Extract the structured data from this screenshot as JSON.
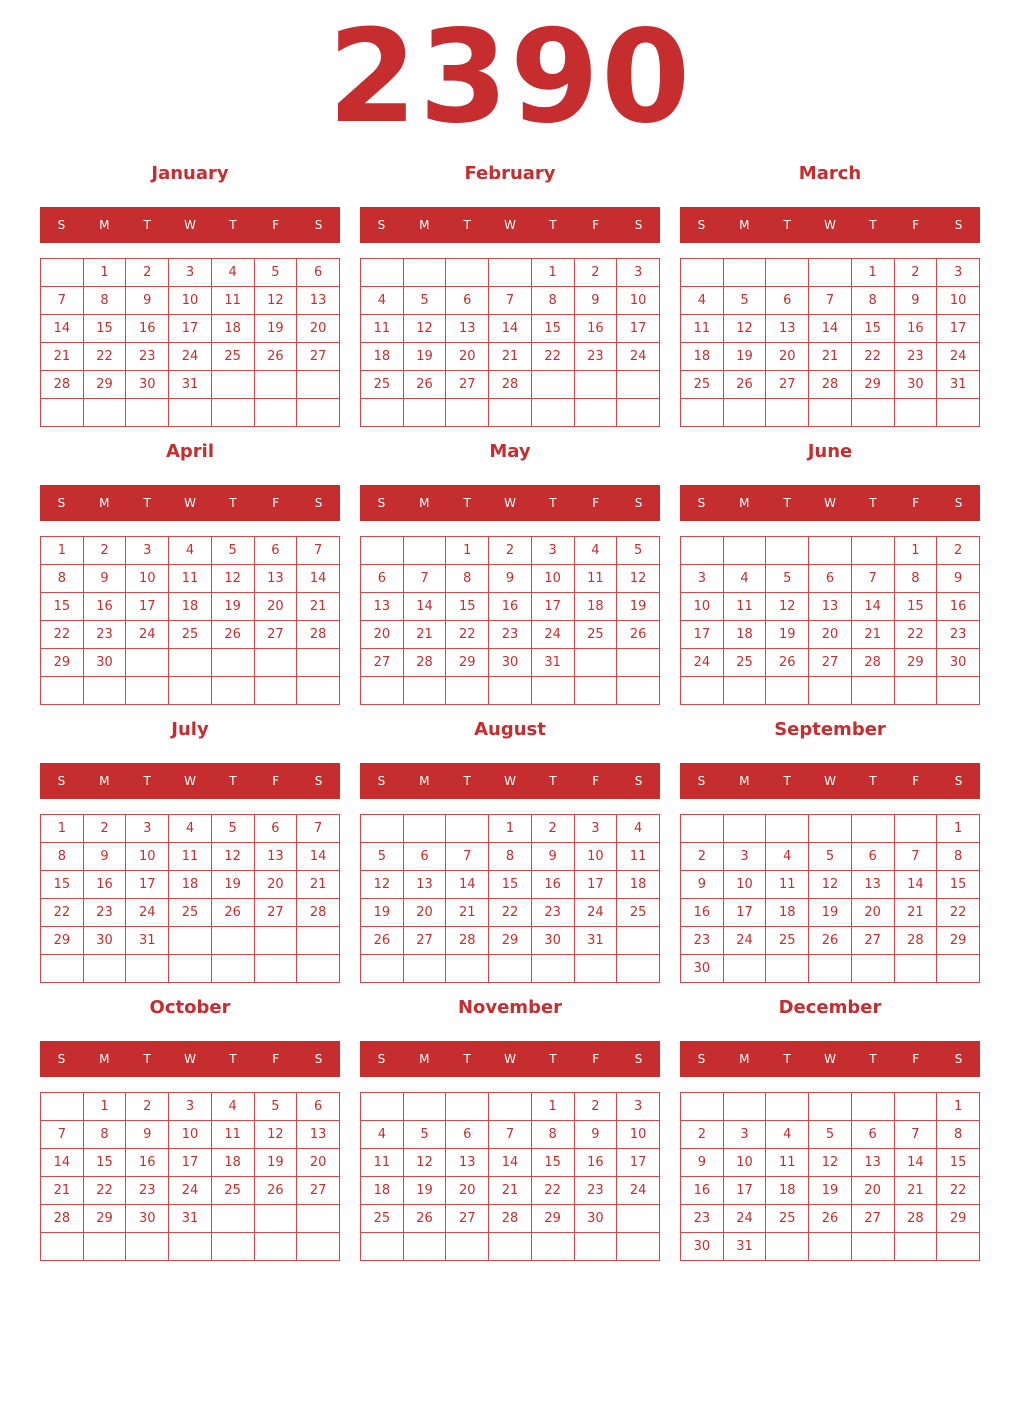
{
  "year": "2390",
  "colors": {
    "accent": "#c62d2f"
  },
  "weekdays": [
    "S",
    "M",
    "T",
    "W",
    "T",
    "F",
    "S"
  ],
  "months": [
    {
      "name": "January",
      "weeks": [
        [
          null,
          1,
          2,
          3,
          4,
          5,
          6
        ],
        [
          7,
          8,
          9,
          10,
          11,
          12,
          13
        ],
        [
          14,
          15,
          16,
          17,
          18,
          19,
          20
        ],
        [
          21,
          22,
          23,
          24,
          25,
          26,
          27
        ],
        [
          28,
          29,
          30,
          31,
          null,
          null,
          null
        ],
        [
          null,
          null,
          null,
          null,
          null,
          null,
          null
        ]
      ]
    },
    {
      "name": "February",
      "weeks": [
        [
          null,
          null,
          null,
          null,
          1,
          2,
          3
        ],
        [
          4,
          5,
          6,
          7,
          8,
          9,
          10
        ],
        [
          11,
          12,
          13,
          14,
          15,
          16,
          17
        ],
        [
          18,
          19,
          20,
          21,
          22,
          23,
          24
        ],
        [
          25,
          26,
          27,
          28,
          null,
          null,
          null
        ],
        [
          null,
          null,
          null,
          null,
          null,
          null,
          null
        ]
      ]
    },
    {
      "name": "March",
      "weeks": [
        [
          null,
          null,
          null,
          null,
          1,
          2,
          3
        ],
        [
          4,
          5,
          6,
          7,
          8,
          9,
          10
        ],
        [
          11,
          12,
          13,
          14,
          15,
          16,
          17
        ],
        [
          18,
          19,
          20,
          21,
          22,
          23,
          24
        ],
        [
          25,
          26,
          27,
          28,
          29,
          30,
          31
        ],
        [
          null,
          null,
          null,
          null,
          null,
          null,
          null
        ]
      ]
    },
    {
      "name": "April",
      "weeks": [
        [
          1,
          2,
          3,
          4,
          5,
          6,
          7
        ],
        [
          8,
          9,
          10,
          11,
          12,
          13,
          14
        ],
        [
          15,
          16,
          17,
          18,
          19,
          20,
          21
        ],
        [
          22,
          23,
          24,
          25,
          26,
          27,
          28
        ],
        [
          29,
          30,
          null,
          null,
          null,
          null,
          null
        ],
        [
          null,
          null,
          null,
          null,
          null,
          null,
          null
        ]
      ]
    },
    {
      "name": "May",
      "weeks": [
        [
          null,
          null,
          1,
          2,
          3,
          4,
          5
        ],
        [
          6,
          7,
          8,
          9,
          10,
          11,
          12
        ],
        [
          13,
          14,
          15,
          16,
          17,
          18,
          19
        ],
        [
          20,
          21,
          22,
          23,
          24,
          25,
          26
        ],
        [
          27,
          28,
          29,
          30,
          31,
          null,
          null
        ],
        [
          null,
          null,
          null,
          null,
          null,
          null,
          null
        ]
      ]
    },
    {
      "name": "June",
      "weeks": [
        [
          null,
          null,
          null,
          null,
          null,
          1,
          2
        ],
        [
          3,
          4,
          5,
          6,
          7,
          8,
          9
        ],
        [
          10,
          11,
          12,
          13,
          14,
          15,
          16
        ],
        [
          17,
          18,
          19,
          20,
          21,
          22,
          23
        ],
        [
          24,
          25,
          26,
          27,
          28,
          29,
          30
        ],
        [
          null,
          null,
          null,
          null,
          null,
          null,
          null
        ]
      ]
    },
    {
      "name": "July",
      "weeks": [
        [
          1,
          2,
          3,
          4,
          5,
          6,
          7
        ],
        [
          8,
          9,
          10,
          11,
          12,
          13,
          14
        ],
        [
          15,
          16,
          17,
          18,
          19,
          20,
          21
        ],
        [
          22,
          23,
          24,
          25,
          26,
          27,
          28
        ],
        [
          29,
          30,
          31,
          null,
          null,
          null,
          null
        ],
        [
          null,
          null,
          null,
          null,
          null,
          null,
          null
        ]
      ]
    },
    {
      "name": "August",
      "weeks": [
        [
          null,
          null,
          null,
          1,
          2,
          3,
          4
        ],
        [
          5,
          6,
          7,
          8,
          9,
          10,
          11
        ],
        [
          12,
          13,
          14,
          15,
          16,
          17,
          18
        ],
        [
          19,
          20,
          21,
          22,
          23,
          24,
          25
        ],
        [
          26,
          27,
          28,
          29,
          30,
          31,
          null
        ],
        [
          null,
          null,
          null,
          null,
          null,
          null,
          null
        ]
      ]
    },
    {
      "name": "September",
      "weeks": [
        [
          null,
          null,
          null,
          null,
          null,
          null,
          1
        ],
        [
          2,
          3,
          4,
          5,
          6,
          7,
          8
        ],
        [
          9,
          10,
          11,
          12,
          13,
          14,
          15
        ],
        [
          16,
          17,
          18,
          19,
          20,
          21,
          22
        ],
        [
          23,
          24,
          25,
          26,
          27,
          28,
          29
        ],
        [
          30,
          null,
          null,
          null,
          null,
          null,
          null
        ]
      ]
    },
    {
      "name": "October",
      "weeks": [
        [
          null,
          1,
          2,
          3,
          4,
          5,
          6
        ],
        [
          7,
          8,
          9,
          10,
          11,
          12,
          13
        ],
        [
          14,
          15,
          16,
          17,
          18,
          19,
          20
        ],
        [
          21,
          22,
          23,
          24,
          25,
          26,
          27
        ],
        [
          28,
          29,
          30,
          31,
          null,
          null,
          null
        ],
        [
          null,
          null,
          null,
          null,
          null,
          null,
          null
        ]
      ]
    },
    {
      "name": "November",
      "weeks": [
        [
          null,
          null,
          null,
          null,
          1,
          2,
          3
        ],
        [
          4,
          5,
          6,
          7,
          8,
          9,
          10
        ],
        [
          11,
          12,
          13,
          14,
          15,
          16,
          17
        ],
        [
          18,
          19,
          20,
          21,
          22,
          23,
          24
        ],
        [
          25,
          26,
          27,
          28,
          29,
          30,
          null
        ],
        [
          null,
          null,
          null,
          null,
          null,
          null,
          null
        ]
      ]
    },
    {
      "name": "December",
      "weeks": [
        [
          null,
          null,
          null,
          null,
          null,
          null,
          1
        ],
        [
          2,
          3,
          4,
          5,
          6,
          7,
          8
        ],
        [
          9,
          10,
          11,
          12,
          13,
          14,
          15
        ],
        [
          16,
          17,
          18,
          19,
          20,
          21,
          22
        ],
        [
          23,
          24,
          25,
          26,
          27,
          28,
          29
        ],
        [
          30,
          31,
          null,
          null,
          null,
          null,
          null
        ]
      ]
    }
  ]
}
